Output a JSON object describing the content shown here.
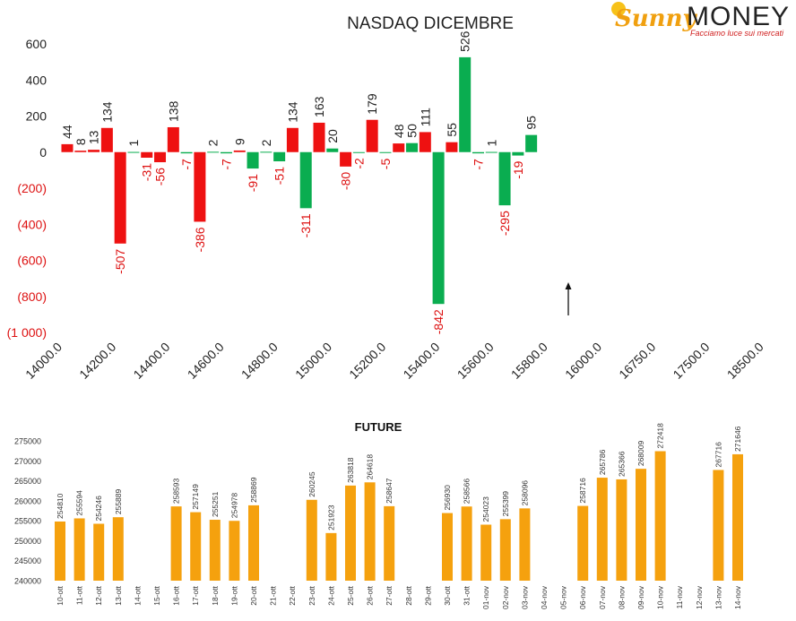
{
  "logo": {
    "brand_left": "Sunny",
    "brand_right": "MONEY",
    "tagline": "Facciamo luce sui mercati"
  },
  "colors": {
    "positive": "#0aad50",
    "negative": "#ee1111",
    "future_bar": "#f5a10e",
    "neg_label": "#dd1111",
    "axis_text": "#222222"
  },
  "chart_data": [
    {
      "type": "bar",
      "title": "NASDAQ DICEMBRE",
      "xlabel": "",
      "ylabel": "",
      "ylim": [
        -1000,
        600
      ],
      "y_ticks": [
        {
          "value": 600,
          "label": "600"
        },
        {
          "value": 400,
          "label": "400"
        },
        {
          "value": 200,
          "label": "200"
        },
        {
          "value": 0,
          "label": "0"
        },
        {
          "value": -200,
          "label": "(200)"
        },
        {
          "value": -400,
          "label": "(400)"
        },
        {
          "value": -600,
          "label": "(600)"
        },
        {
          "value": -800,
          "label": "(800)"
        },
        {
          "value": -1000,
          "label": "(1 000)"
        }
      ],
      "x_ticks": [
        "14000.0",
        "14200.0",
        "14400.0",
        "14600.0",
        "14800.0",
        "15000.0",
        "15200.0",
        "15400.0",
        "15600.0",
        "15800.0",
        "16000.0",
        "16750.0",
        "17500.0",
        "18500.0"
      ],
      "grid": false,
      "annotation": "arrow",
      "bars": [
        {
          "value": 44,
          "label": "44",
          "color": "red"
        },
        {
          "value": 8,
          "label": "8",
          "color": "red"
        },
        {
          "value": 13,
          "label": "13",
          "color": "red"
        },
        {
          "value": 134,
          "label": "134",
          "color": "red"
        },
        {
          "value": -507,
          "label": "-507",
          "color": "red"
        },
        {
          "value": 1,
          "label": "1",
          "color": "green"
        },
        {
          "value": -31,
          "label": "-31",
          "color": "red"
        },
        {
          "value": -56,
          "label": "-56",
          "color": "red"
        },
        {
          "value": 138,
          "label": "138",
          "color": "red"
        },
        {
          "value": -7,
          "label": "-7",
          "color": "green"
        },
        {
          "value": -386,
          "label": "-386",
          "color": "red"
        },
        {
          "value": 2,
          "label": "2",
          "color": "green"
        },
        {
          "value": -7,
          "label": "-7",
          "color": "green"
        },
        {
          "value": 9,
          "label": "9",
          "color": "red"
        },
        {
          "value": -91,
          "label": "-91",
          "color": "green"
        },
        {
          "value": 2,
          "label": "2",
          "color": "green"
        },
        {
          "value": -51,
          "label": "-51",
          "color": "green"
        },
        {
          "value": 134,
          "label": "134",
          "color": "red"
        },
        {
          "value": -311,
          "label": "-311",
          "color": "green"
        },
        {
          "value": 163,
          "label": "163",
          "color": "red"
        },
        {
          "value": 20,
          "label": "20",
          "color": "green"
        },
        {
          "value": -80,
          "label": "-80",
          "color": "red"
        },
        {
          "value": -2,
          "label": "-2",
          "color": "green"
        },
        {
          "value": 179,
          "label": "179",
          "color": "red"
        },
        {
          "value": -5,
          "label": "-5",
          "color": "green"
        },
        {
          "value": 48,
          "label": "48",
          "color": "red"
        },
        {
          "value": 50,
          "label": "50",
          "color": "green"
        },
        {
          "value": 111,
          "label": "111",
          "color": "red"
        },
        {
          "value": -842,
          "label": "-842",
          "color": "green"
        },
        {
          "value": 55,
          "label": "55",
          "color": "red"
        },
        {
          "value": 526,
          "label": "526",
          "color": "green"
        },
        {
          "value": -7,
          "label": "-7",
          "color": "green"
        },
        {
          "value": 1,
          "label": "1",
          "color": "green"
        },
        {
          "value": -295,
          "label": "-295",
          "color": "green"
        },
        {
          "value": -19,
          "label": "-19",
          "color": "green"
        },
        {
          "value": 95,
          "label": "95",
          "color": "green"
        }
      ]
    },
    {
      "type": "bar",
      "title": "FUTURE",
      "xlabel": "",
      "ylabel": "",
      "ylim": [
        240000,
        275000
      ],
      "y_ticks": [
        "275000",
        "270000",
        "265000",
        "260000",
        "255000",
        "250000",
        "245000",
        "240000"
      ],
      "grid": false,
      "categories": [
        "10-ott",
        "11-ott",
        "12-ott",
        "13-ott",
        "14-ott",
        "15-ott",
        "16-ott",
        "17-ott",
        "18-ott",
        "19-ott",
        "20-ott",
        "21-ott",
        "22-ott",
        "23-ott",
        "24-ott",
        "25-ott",
        "26-ott",
        "27-ott",
        "28-ott",
        "29-ott",
        "30-ott",
        "31-ott",
        "01-nov",
        "02-nov",
        "03-nov",
        "04-nov",
        "05-nov",
        "06-nov",
        "07-nov",
        "08-nov",
        "09-nov",
        "10-nov",
        "11-nov",
        "12-nov",
        "13-nov",
        "14-nov"
      ],
      "values": [
        254810,
        255594,
        254246,
        255889,
        null,
        null,
        258593,
        257149,
        255251,
        254978,
        258869,
        null,
        null,
        260245,
        251923,
        263818,
        264618,
        258647,
        null,
        null,
        256930,
        258566,
        254023,
        255399,
        258096,
        null,
        null,
        258716,
        265786,
        265366,
        268009,
        272418,
        null,
        null,
        267716,
        271646
      ]
    }
  ]
}
